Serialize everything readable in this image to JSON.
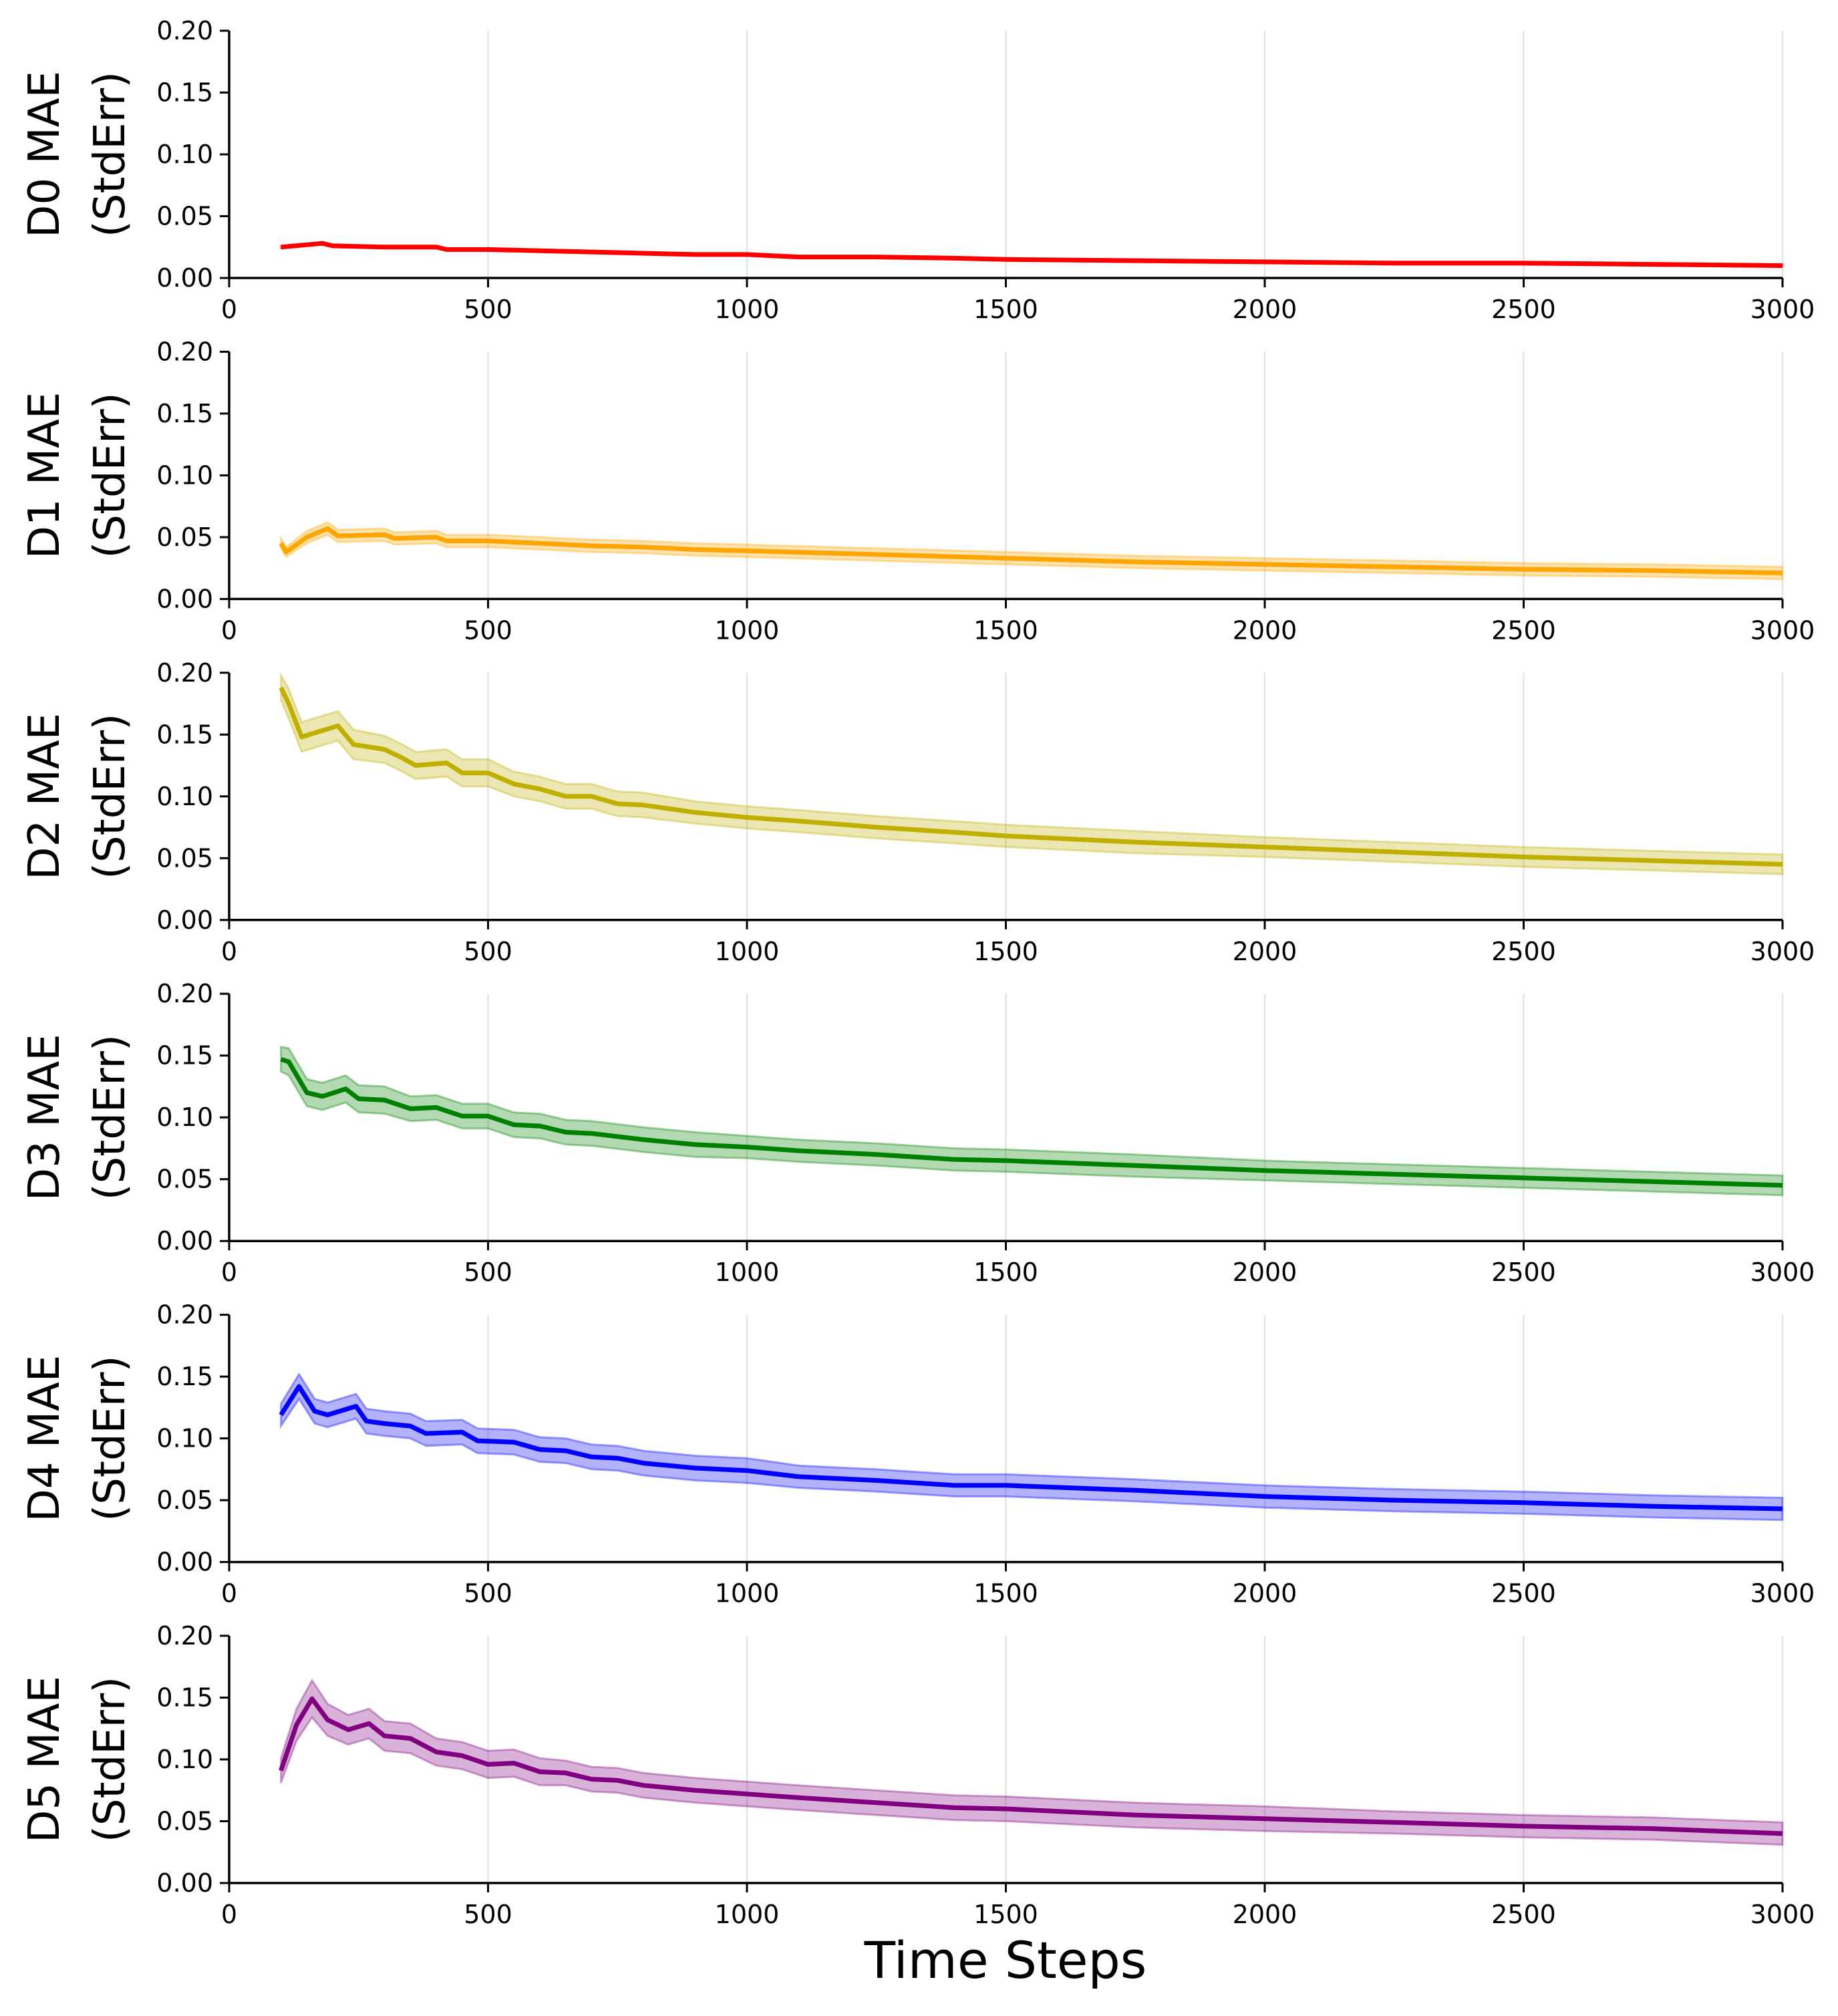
{
  "chart_data": [
    {
      "type": "line",
      "panel": "D0",
      "ylabel_line1": "D0 MAE",
      "ylabel_line2": "(StdErr)",
      "xlabel": "",
      "color": "#ff0000",
      "band_color": "#ff0000",
      "xlim": [
        0,
        3000
      ],
      "ylim": [
        0.0,
        0.2
      ],
      "xticks": [
        0,
        500,
        1000,
        1500,
        2000,
        2500,
        3000
      ],
      "xtick_labels": [
        "0",
        "500",
        "1000",
        "1500",
        "2000",
        "2500",
        "3000"
      ],
      "yticks": [
        0.0,
        0.05,
        0.1,
        0.15,
        0.2
      ],
      "ytick_labels": [
        "0.00",
        "0.05",
        "0.10",
        "0.15",
        "0.20"
      ],
      "grid": "vertical",
      "series": [
        {
          "name": "D0 MAE",
          "x": [
            100,
            180,
            200,
            300,
            400,
            420,
            500,
            600,
            700,
            800,
            900,
            1000,
            1100,
            1250,
            1400,
            1500,
            1750,
            2000,
            2250,
            2500,
            2750,
            3000
          ],
          "y": [
            0.025,
            0.028,
            0.026,
            0.025,
            0.025,
            0.023,
            0.023,
            0.022,
            0.021,
            0.02,
            0.019,
            0.019,
            0.017,
            0.017,
            0.016,
            0.015,
            0.014,
            0.013,
            0.012,
            0.012,
            0.011,
            0.01
          ],
          "stderr": [
            0.001,
            0.001,
            0.001,
            0.001,
            0.001,
            0.001,
            0.001,
            0.001,
            0.001,
            0.001,
            0.001,
            0.001,
            0.001,
            0.001,
            0.001,
            0.001,
            0.001,
            0.001,
            0.001,
            0.001,
            0.001,
            0.001
          ]
        }
      ]
    },
    {
      "type": "line",
      "panel": "D1",
      "ylabel_line1": "D1 MAE",
      "ylabel_line2": "(StdErr)",
      "xlabel": "",
      "color": "#ffa500",
      "band_color": "#ffa500",
      "xlim": [
        0,
        3000
      ],
      "ylim": [
        0.0,
        0.2
      ],
      "xticks": [
        0,
        500,
        1000,
        1500,
        2000,
        2500,
        3000
      ],
      "xtick_labels": [
        "0",
        "500",
        "1000",
        "1500",
        "2000",
        "2500",
        "3000"
      ],
      "yticks": [
        0.0,
        0.05,
        0.1,
        0.15,
        0.2
      ],
      "ytick_labels": [
        "0.00",
        "0.05",
        "0.10",
        "0.15",
        "0.20"
      ],
      "grid": "vertical",
      "series": [
        {
          "name": "D1 MAE",
          "x": [
            100,
            110,
            150,
            190,
            210,
            300,
            320,
            400,
            420,
            500,
            600,
            700,
            800,
            900,
            1000,
            1250,
            1500,
            1750,
            2000,
            2250,
            2500,
            2750,
            3000
          ],
          "y": [
            0.045,
            0.038,
            0.05,
            0.057,
            0.051,
            0.052,
            0.049,
            0.05,
            0.047,
            0.047,
            0.045,
            0.043,
            0.042,
            0.04,
            0.039,
            0.036,
            0.033,
            0.03,
            0.028,
            0.026,
            0.024,
            0.023,
            0.021
          ],
          "stderr": [
            0.004,
            0.004,
            0.005,
            0.005,
            0.005,
            0.005,
            0.005,
            0.005,
            0.005,
            0.005,
            0.005,
            0.005,
            0.005,
            0.005,
            0.005,
            0.005,
            0.005,
            0.005,
            0.005,
            0.005,
            0.005,
            0.005,
            0.005
          ]
        }
      ]
    },
    {
      "type": "line",
      "panel": "D2",
      "ylabel_line1": "D2 MAE",
      "ylabel_line2": "(StdErr)",
      "xlabel": "",
      "color": "#bfaf00",
      "band_color": "#bfaf00",
      "xlim": [
        0,
        3000
      ],
      "ylim": [
        0.0,
        0.2
      ],
      "xticks": [
        0,
        500,
        1000,
        1500,
        2000,
        2500,
        3000
      ],
      "xtick_labels": [
        "0",
        "500",
        "1000",
        "1500",
        "2000",
        "2500",
        "3000"
      ],
      "yticks": [
        0.0,
        0.05,
        0.1,
        0.15,
        0.2
      ],
      "ytick_labels": [
        "0.00",
        "0.05",
        "0.10",
        "0.15",
        "0.20"
      ],
      "grid": "vertical",
      "series": [
        {
          "name": "D2 MAE",
          "x": [
            100,
            115,
            140,
            170,
            210,
            240,
            300,
            330,
            360,
            420,
            450,
            500,
            550,
            600,
            650,
            700,
            750,
            800,
            900,
            1000,
            1100,
            1250,
            1400,
            1500,
            1750,
            2000,
            2250,
            2500,
            2750,
            3000
          ],
          "y": [
            0.188,
            0.175,
            0.148,
            0.152,
            0.157,
            0.142,
            0.138,
            0.132,
            0.125,
            0.127,
            0.119,
            0.119,
            0.11,
            0.106,
            0.1,
            0.1,
            0.094,
            0.093,
            0.087,
            0.083,
            0.08,
            0.075,
            0.071,
            0.068,
            0.063,
            0.059,
            0.055,
            0.051,
            0.048,
            0.045
          ],
          "stderr": [
            0.01,
            0.012,
            0.012,
            0.012,
            0.012,
            0.012,
            0.011,
            0.011,
            0.011,
            0.011,
            0.011,
            0.011,
            0.01,
            0.01,
            0.01,
            0.01,
            0.01,
            0.01,
            0.009,
            0.009,
            0.009,
            0.009,
            0.009,
            0.009,
            0.009,
            0.008,
            0.008,
            0.008,
            0.008,
            0.008
          ]
        }
      ]
    },
    {
      "type": "line",
      "panel": "D3",
      "ylabel_line1": "D3 MAE",
      "ylabel_line2": "(StdErr)",
      "xlabel": "",
      "color": "#008000",
      "band_color": "#008000",
      "xlim": [
        0,
        3000
      ],
      "ylim": [
        0.0,
        0.2
      ],
      "xticks": [
        0,
        500,
        1000,
        1500,
        2000,
        2500,
        3000
      ],
      "xtick_labels": [
        "0",
        "500",
        "1000",
        "1500",
        "2000",
        "2500",
        "3000"
      ],
      "yticks": [
        0.0,
        0.05,
        0.1,
        0.15,
        0.2
      ],
      "ytick_labels": [
        "0.00",
        "0.05",
        "0.10",
        "0.15",
        "0.20"
      ],
      "grid": "vertical",
      "series": [
        {
          "name": "D3 MAE",
          "x": [
            100,
            115,
            150,
            180,
            225,
            250,
            300,
            350,
            400,
            450,
            500,
            550,
            600,
            650,
            700,
            800,
            900,
            1000,
            1100,
            1250,
            1400,
            1500,
            1750,
            2000,
            2250,
            2500,
            2750,
            3000
          ],
          "y": [
            0.147,
            0.145,
            0.12,
            0.117,
            0.123,
            0.115,
            0.114,
            0.107,
            0.108,
            0.101,
            0.101,
            0.094,
            0.093,
            0.088,
            0.087,
            0.082,
            0.078,
            0.076,
            0.073,
            0.07,
            0.066,
            0.065,
            0.061,
            0.057,
            0.054,
            0.051,
            0.048,
            0.045
          ],
          "stderr": [
            0.01,
            0.011,
            0.011,
            0.011,
            0.011,
            0.011,
            0.011,
            0.01,
            0.01,
            0.01,
            0.01,
            0.01,
            0.01,
            0.01,
            0.01,
            0.01,
            0.01,
            0.009,
            0.009,
            0.009,
            0.009,
            0.009,
            0.009,
            0.008,
            0.008,
            0.008,
            0.008,
            0.008
          ]
        }
      ]
    },
    {
      "type": "line",
      "panel": "D4",
      "ylabel_line1": "D4 MAE",
      "ylabel_line2": "(StdErr)",
      "xlabel": "",
      "color": "#0000ff",
      "band_color": "#0000ff",
      "xlim": [
        0,
        3000
      ],
      "ylim": [
        0.0,
        0.2
      ],
      "xticks": [
        0,
        500,
        1000,
        1500,
        2000,
        2500,
        3000
      ],
      "xtick_labels": [
        "0",
        "500",
        "1000",
        "1500",
        "2000",
        "2500",
        "3000"
      ],
      "yticks": [
        0.0,
        0.05,
        0.1,
        0.15,
        0.2
      ],
      "ytick_labels": [
        "0.00",
        "0.05",
        "0.10",
        "0.15",
        "0.20"
      ],
      "grid": "vertical",
      "series": [
        {
          "name": "D4 MAE",
          "x": [
            100,
            135,
            165,
            190,
            245,
            265,
            300,
            350,
            380,
            450,
            480,
            550,
            600,
            650,
            700,
            750,
            800,
            900,
            1000,
            1100,
            1250,
            1400,
            1500,
            1750,
            2000,
            2250,
            2500,
            2750,
            3000
          ],
          "y": [
            0.119,
            0.142,
            0.122,
            0.119,
            0.126,
            0.114,
            0.112,
            0.11,
            0.104,
            0.105,
            0.098,
            0.097,
            0.091,
            0.09,
            0.085,
            0.084,
            0.08,
            0.076,
            0.074,
            0.069,
            0.066,
            0.062,
            0.062,
            0.058,
            0.053,
            0.05,
            0.048,
            0.045,
            0.043
          ],
          "stderr": [
            0.009,
            0.01,
            0.01,
            0.01,
            0.01,
            0.01,
            0.01,
            0.01,
            0.01,
            0.01,
            0.01,
            0.01,
            0.01,
            0.01,
            0.01,
            0.01,
            0.01,
            0.01,
            0.01,
            0.009,
            0.009,
            0.009,
            0.009,
            0.009,
            0.009,
            0.009,
            0.009,
            0.009,
            0.009
          ]
        }
      ]
    },
    {
      "type": "line",
      "panel": "D5",
      "ylabel_line1": "D5 MAE",
      "ylabel_line2": "(StdErr)",
      "xlabel": "Time Steps",
      "color": "#800080",
      "band_color": "#800080",
      "xlim": [
        0,
        3000
      ],
      "ylim": [
        0.0,
        0.2
      ],
      "xticks": [
        0,
        500,
        1000,
        1500,
        2000,
        2500,
        3000
      ],
      "xtick_labels": [
        "0",
        "500",
        "1000",
        "1500",
        "2000",
        "2500",
        "3000"
      ],
      "yticks": [
        0.0,
        0.05,
        0.1,
        0.15,
        0.2
      ],
      "ytick_labels": [
        "0.00",
        "0.05",
        "0.10",
        "0.15",
        "0.20"
      ],
      "grid": "vertical",
      "series": [
        {
          "name": "D5 MAE",
          "x": [
            100,
            130,
            160,
            190,
            230,
            270,
            300,
            350,
            400,
            450,
            500,
            550,
            600,
            650,
            700,
            750,
            800,
            900,
            1000,
            1100,
            1250,
            1400,
            1500,
            1750,
            2000,
            2250,
            2500,
            2750,
            3000
          ],
          "y": [
            0.091,
            0.128,
            0.149,
            0.132,
            0.124,
            0.129,
            0.119,
            0.117,
            0.106,
            0.103,
            0.096,
            0.097,
            0.09,
            0.089,
            0.084,
            0.083,
            0.079,
            0.075,
            0.072,
            0.069,
            0.065,
            0.061,
            0.06,
            0.055,
            0.052,
            0.049,
            0.046,
            0.044,
            0.04
          ],
          "stderr": [
            0.01,
            0.013,
            0.015,
            0.013,
            0.012,
            0.012,
            0.012,
            0.012,
            0.011,
            0.011,
            0.011,
            0.011,
            0.011,
            0.01,
            0.01,
            0.01,
            0.01,
            0.01,
            0.01,
            0.01,
            0.01,
            0.01,
            0.01,
            0.01,
            0.01,
            0.009,
            0.009,
            0.009,
            0.009
          ]
        }
      ]
    }
  ]
}
